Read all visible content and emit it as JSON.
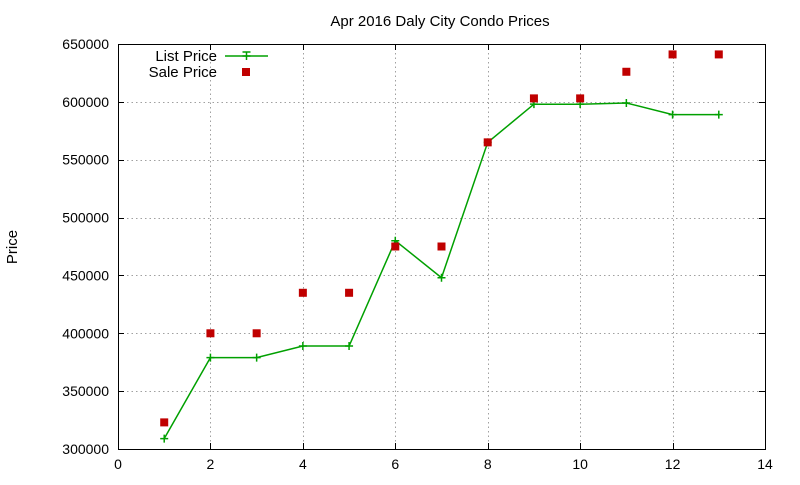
{
  "chart_data": {
    "type": "line",
    "title": "Apr 2016 Daly City Condo Prices",
    "xlabel": "",
    "ylabel": "Price",
    "xlim": [
      0,
      14
    ],
    "ylim": [
      300000,
      650000
    ],
    "xticks": [
      0,
      2,
      4,
      6,
      8,
      10,
      12,
      14
    ],
    "yticks": [
      300000,
      350000,
      400000,
      450000,
      500000,
      550000,
      600000,
      650000
    ],
    "grid": true,
    "legend_position": "top-left",
    "series": [
      {
        "name": "List Price",
        "style": "linespoints",
        "color": "#00a000",
        "x": [
          1,
          2,
          3,
          4,
          5,
          6,
          7,
          8,
          9,
          10,
          11,
          12,
          13
        ],
        "y": [
          309000,
          379000,
          379000,
          389000,
          389000,
          480000,
          448000,
          565000,
          598000,
          598000,
          599000,
          589000,
          589000
        ]
      },
      {
        "name": "Sale Price",
        "style": "points",
        "color": "#c00000",
        "x": [
          1,
          2,
          3,
          4,
          5,
          6,
          7,
          8,
          9,
          10,
          11,
          12,
          13
        ],
        "y": [
          323000,
          400000,
          400000,
          435000,
          435000,
          475000,
          475000,
          565000,
          603000,
          603000,
          626000,
          641000,
          641000
        ]
      }
    ]
  }
}
